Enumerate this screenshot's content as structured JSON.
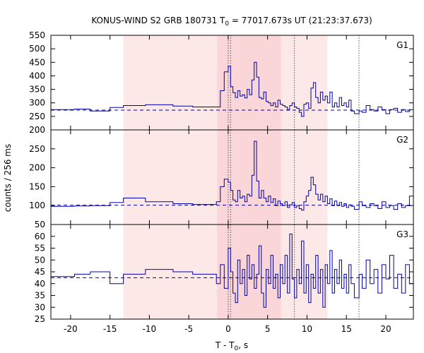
{
  "chart_data": {
    "type": "line",
    "title": "KONUS-WIND S2 GRB 180731 T",
    "title_sub": "0",
    "title_rest": " = 77017.673s UT (21:23:37.673)",
    "xlabel": "T - T",
    "xlabel_sub": "0",
    "xlabel_rest": ", s",
    "ylabel": "counts / 256 ms",
    "xlim": [
      -22.5,
      23.5
    ],
    "xticks": [
      -20,
      -15,
      -10,
      -5,
      0,
      5,
      10,
      15,
      20
    ],
    "line_color": "#0000aa",
    "shade_light": "#fde8e8",
    "shade_dark": "#fbd6d9",
    "shaded_regions": [
      {
        "from": -13.3,
        "to": 12.6,
        "tone": "light"
      },
      {
        "from": -1.4,
        "to": 6.7,
        "tone": "dark"
      }
    ],
    "vlines": [
      0.0,
      0.3,
      8.4,
      16.6
    ],
    "panels": [
      {
        "label": "G1",
        "ylim": [
          200,
          550
        ],
        "yticks": [
          200,
          250,
          300,
          350,
          400,
          450,
          500,
          550
        ],
        "background": 273,
        "steps": [
          [
            -22.5,
            275
          ],
          [
            -19.5,
            277
          ],
          [
            -17.5,
            270
          ],
          [
            -15.0,
            283
          ],
          [
            -13.3,
            290
          ],
          [
            -10.5,
            293
          ],
          [
            -7.0,
            288
          ],
          [
            -4.5,
            285
          ],
          [
            -1.5,
            285
          ],
          [
            -1.0,
            345
          ],
          [
            -0.5,
            415
          ],
          [
            0.0,
            435
          ],
          [
            0.3,
            360
          ],
          [
            0.6,
            338
          ],
          [
            0.9,
            320
          ],
          [
            1.2,
            345
          ],
          [
            1.5,
            325
          ],
          [
            1.8,
            330
          ],
          [
            2.1,
            318
          ],
          [
            2.4,
            350
          ],
          [
            2.7,
            330
          ],
          [
            3.0,
            385
          ],
          [
            3.3,
            450
          ],
          [
            3.6,
            395
          ],
          [
            3.9,
            320
          ],
          [
            4.2,
            315
          ],
          [
            4.5,
            340
          ],
          [
            4.8,
            305
          ],
          [
            5.1,
            300
          ],
          [
            5.4,
            290
          ],
          [
            5.7,
            300
          ],
          [
            6.0,
            285
          ],
          [
            6.3,
            310
          ],
          [
            6.6,
            295
          ],
          [
            6.9,
            290
          ],
          [
            7.2,
            285
          ],
          [
            7.5,
            275
          ],
          [
            7.8,
            290
          ],
          [
            8.1,
            300
          ],
          [
            8.4,
            285
          ],
          [
            8.7,
            280
          ],
          [
            9.0,
            265
          ],
          [
            9.3,
            250
          ],
          [
            9.6,
            295
          ],
          [
            9.9,
            300
          ],
          [
            10.2,
            280
          ],
          [
            10.5,
            355
          ],
          [
            10.8,
            375
          ],
          [
            11.1,
            320
          ],
          [
            11.4,
            300
          ],
          [
            11.7,
            340
          ],
          [
            12.0,
            310
          ],
          [
            12.3,
            325
          ],
          [
            12.6,
            300
          ],
          [
            12.9,
            340
          ],
          [
            13.2,
            285
          ],
          [
            13.5,
            300
          ],
          [
            13.8,
            285
          ],
          [
            14.1,
            320
          ],
          [
            14.4,
            290
          ],
          [
            14.7,
            300
          ],
          [
            15.0,
            285
          ],
          [
            15.3,
            310
          ],
          [
            15.6,
            270
          ],
          [
            16.0,
            260
          ],
          [
            16.6,
            270
          ],
          [
            17.0,
            265
          ],
          [
            17.5,
            290
          ],
          [
            18.0,
            275
          ],
          [
            18.5,
            270
          ],
          [
            19.0,
            285
          ],
          [
            19.5,
            275
          ],
          [
            20.0,
            260
          ],
          [
            20.5,
            275
          ],
          [
            21.0,
            280
          ],
          [
            21.5,
            265
          ],
          [
            22.0,
            275
          ],
          [
            22.5,
            268
          ],
          [
            23.0,
            275
          ],
          [
            23.5,
            275
          ]
        ]
      },
      {
        "label": "G2",
        "ylim": [
          50,
          300
        ],
        "yticks": [
          50,
          100,
          150,
          200,
          250
        ],
        "background": 101,
        "steps": [
          [
            -22.5,
            98
          ],
          [
            -19.5,
            99
          ],
          [
            -17.5,
            100
          ],
          [
            -15.0,
            108
          ],
          [
            -13.3,
            120
          ],
          [
            -10.5,
            110
          ],
          [
            -7.0,
            105
          ],
          [
            -4.5,
            103
          ],
          [
            -1.5,
            110
          ],
          [
            -1.0,
            150
          ],
          [
            -0.5,
            170
          ],
          [
            0.0,
            162
          ],
          [
            0.3,
            140
          ],
          [
            0.6,
            115
          ],
          [
            0.9,
            110
          ],
          [
            1.2,
            140
          ],
          [
            1.5,
            120
          ],
          [
            1.8,
            125
          ],
          [
            2.1,
            110
          ],
          [
            2.4,
            130
          ],
          [
            2.7,
            125
          ],
          [
            3.0,
            180
          ],
          [
            3.3,
            270
          ],
          [
            3.6,
            165
          ],
          [
            3.9,
            120
          ],
          [
            4.2,
            140
          ],
          [
            4.5,
            120
          ],
          [
            4.8,
            110
          ],
          [
            5.1,
            125
          ],
          [
            5.4,
            108
          ],
          [
            5.7,
            118
          ],
          [
            6.0,
            100
          ],
          [
            6.3,
            112
          ],
          [
            6.6,
            105
          ],
          [
            6.9,
            100
          ],
          [
            7.2,
            110
          ],
          [
            7.5,
            95
          ],
          [
            7.8,
            102
          ],
          [
            8.1,
            108
          ],
          [
            8.4,
            95
          ],
          [
            8.7,
            100
          ],
          [
            9.0,
            92
          ],
          [
            9.3,
            88
          ],
          [
            9.6,
            110
          ],
          [
            9.9,
            125
          ],
          [
            10.2,
            140
          ],
          [
            10.5,
            175
          ],
          [
            10.8,
            155
          ],
          [
            11.1,
            130
          ],
          [
            11.4,
            115
          ],
          [
            11.7,
            130
          ],
          [
            12.0,
            110
          ],
          [
            12.3,
            125
          ],
          [
            12.6,
            105
          ],
          [
            12.9,
            118
          ],
          [
            13.2,
            100
          ],
          [
            13.5,
            112
          ],
          [
            13.8,
            100
          ],
          [
            14.1,
            108
          ],
          [
            14.4,
            98
          ],
          [
            14.7,
            105
          ],
          [
            15.0,
            95
          ],
          [
            15.3,
            102
          ],
          [
            15.6,
            98
          ],
          [
            16.0,
            90
          ],
          [
            16.6,
            110
          ],
          [
            17.0,
            100
          ],
          [
            17.5,
            95
          ],
          [
            18.0,
            105
          ],
          [
            18.5,
            100
          ],
          [
            19.0,
            92
          ],
          [
            19.5,
            110
          ],
          [
            20.0,
            95
          ],
          [
            20.5,
            100
          ],
          [
            21.0,
            90
          ],
          [
            21.5,
            105
          ],
          [
            22.0,
            95
          ],
          [
            22.5,
            100
          ],
          [
            23.0,
            125
          ],
          [
            23.5,
            125
          ]
        ]
      },
      {
        "label": "G3",
        "ylim": [
          25,
          65
        ],
        "yticks": [
          25,
          30,
          35,
          40,
          45,
          50,
          55,
          60
        ],
        "background": 42.5,
        "steps": [
          [
            -22.5,
            43
          ],
          [
            -19.5,
            44
          ],
          [
            -17.5,
            45
          ],
          [
            -15.0,
            40
          ],
          [
            -13.3,
            44
          ],
          [
            -10.5,
            46
          ],
          [
            -7.0,
            45
          ],
          [
            -4.5,
            44
          ],
          [
            -1.5,
            40
          ],
          [
            -1.0,
            48
          ],
          [
            -0.5,
            38
          ],
          [
            0.0,
            55
          ],
          [
            0.3,
            45
          ],
          [
            0.6,
            36
          ],
          [
            0.9,
            32
          ],
          [
            1.2,
            50
          ],
          [
            1.5,
            40
          ],
          [
            1.8,
            46
          ],
          [
            2.1,
            35
          ],
          [
            2.4,
            52
          ],
          [
            2.7,
            42
          ],
          [
            3.0,
            48
          ],
          [
            3.3,
            38
          ],
          [
            3.6,
            44
          ],
          [
            3.9,
            56
          ],
          [
            4.2,
            36
          ],
          [
            4.5,
            30
          ],
          [
            4.8,
            46
          ],
          [
            5.1,
            40
          ],
          [
            5.4,
            52
          ],
          [
            5.7,
            38
          ],
          [
            6.0,
            44
          ],
          [
            6.3,
            34
          ],
          [
            6.6,
            48
          ],
          [
            6.9,
            40
          ],
          [
            7.2,
            52
          ],
          [
            7.5,
            36
          ],
          [
            7.8,
            61
          ],
          [
            8.1,
            42
          ],
          [
            8.4,
            34
          ],
          [
            8.7,
            46
          ],
          [
            9.0,
            40
          ],
          [
            9.3,
            58
          ],
          [
            9.6,
            36
          ],
          [
            9.9,
            48
          ],
          [
            10.2,
            32
          ],
          [
            10.5,
            44
          ],
          [
            10.8,
            38
          ],
          [
            11.1,
            52
          ],
          [
            11.4,
            36
          ],
          [
            11.7,
            46
          ],
          [
            12.0,
            30
          ],
          [
            12.3,
            48
          ],
          [
            12.6,
            40
          ],
          [
            12.9,
            54
          ],
          [
            13.2,
            36
          ],
          [
            13.5,
            46
          ],
          [
            13.8,
            40
          ],
          [
            14.1,
            50
          ],
          [
            14.4,
            38
          ],
          [
            14.7,
            44
          ],
          [
            15.0,
            36
          ],
          [
            15.3,
            48
          ],
          [
            15.6,
            40
          ],
          [
            16.0,
            34
          ],
          [
            16.6,
            44
          ],
          [
            17.0,
            38
          ],
          [
            17.5,
            50
          ],
          [
            18.0,
            40
          ],
          [
            18.5,
            46
          ],
          [
            19.0,
            36
          ],
          [
            19.5,
            48
          ],
          [
            20.0,
            42
          ],
          [
            20.5,
            52
          ],
          [
            21.0,
            38
          ],
          [
            21.5,
            44
          ],
          [
            22.0,
            36
          ],
          [
            22.5,
            48
          ],
          [
            23.0,
            40
          ],
          [
            23.5,
            40
          ]
        ]
      }
    ]
  }
}
